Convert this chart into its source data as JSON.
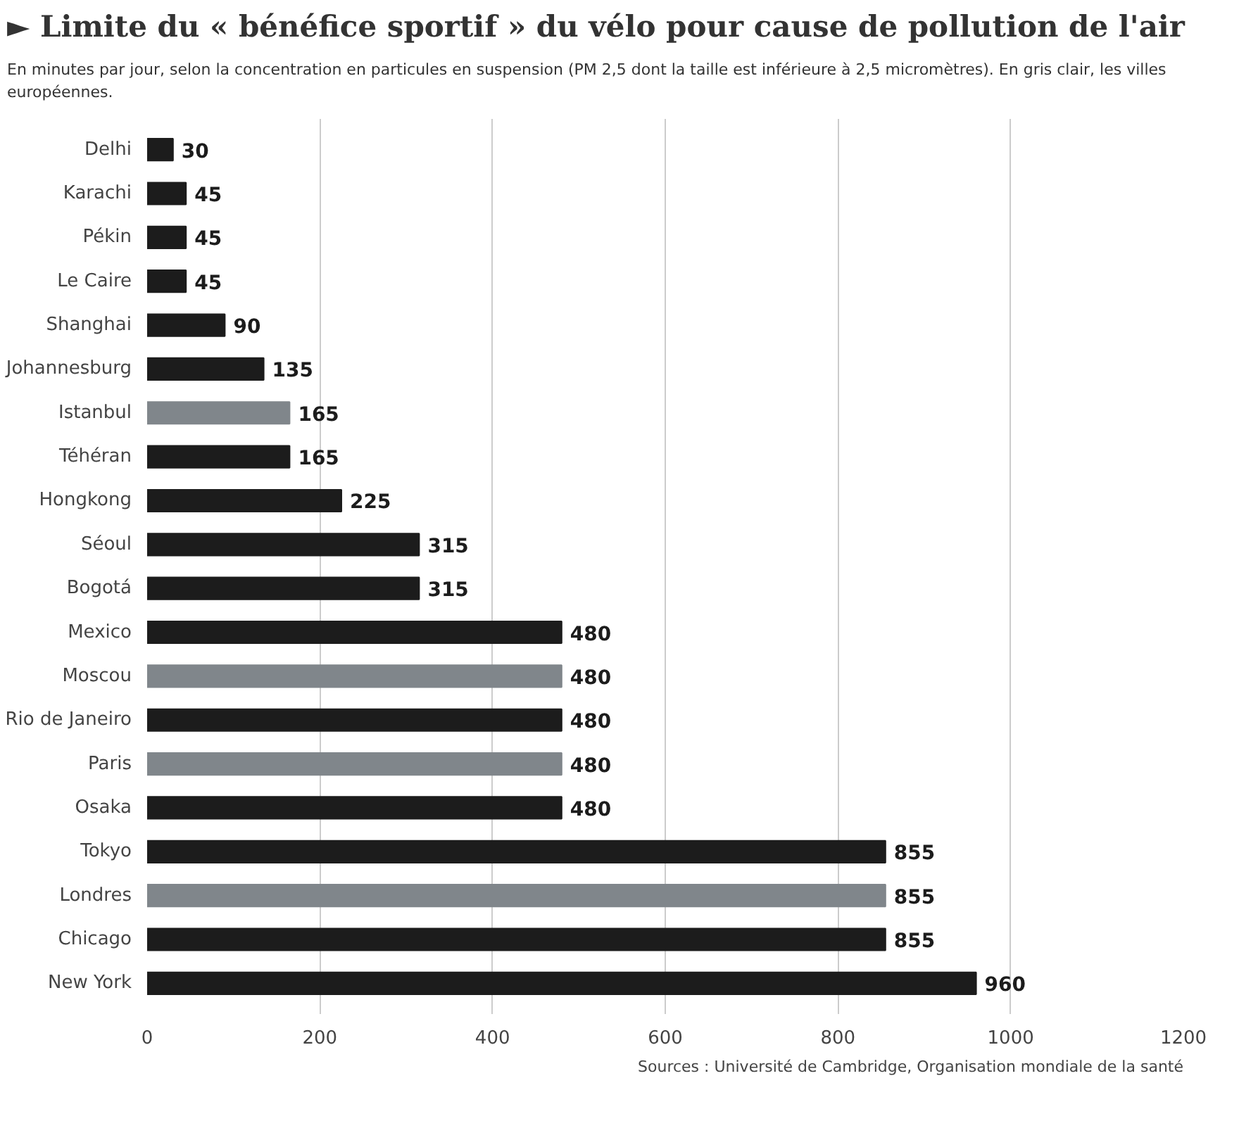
{
  "chart_data": {
    "type": "bar",
    "orientation": "horizontal",
    "title": "► Limite du « bénéfice sportif » du vélo pour cause de pollution de l'air",
    "subtitle": "En minutes par jour, selon la concentration en particules en suspension (PM 2,5 dont la taille est inférieure à 2,5 micromètres). En gris clair, les villes européennes.",
    "categories": [
      "Delhi",
      "Karachi",
      "Pékin",
      "Le Caire",
      "Shanghai",
      "Johannesburg",
      "Istanbul",
      "Téhéran",
      "Hongkong",
      "Séoul",
      "Bogotá",
      "Mexico",
      "Moscou",
      "Rio de Janeiro",
      "Paris",
      "Osaka",
      "Tokyo",
      "Londres",
      "Chicago",
      "New York"
    ],
    "values": [
      30,
      45,
      45,
      45,
      90,
      135,
      165,
      165,
      225,
      315,
      315,
      480,
      480,
      480,
      480,
      480,
      855,
      855,
      855,
      960
    ],
    "colors": [
      "#1c1c1c",
      "#1c1c1c",
      "#1c1c1c",
      "#1c1c1c",
      "#1c1c1c",
      "#1c1c1c",
      "#80868b",
      "#1c1c1c",
      "#1c1c1c",
      "#1c1c1c",
      "#1c1c1c",
      "#1c1c1c",
      "#80868b",
      "#1c1c1c",
      "#80868b",
      "#1c1c1c",
      "#1c1c1c",
      "#80868b",
      "#1c1c1c",
      "#1c1c1c"
    ],
    "xlim": [
      0,
      1200
    ],
    "xticks": [
      0,
      200,
      400,
      600,
      800,
      1000,
      1200
    ],
    "grid": "x",
    "data_labels": true,
    "legend": false,
    "annotations": [
      "Sources : Université de Cambridge, Organisation mondiale de la santé"
    ]
  }
}
